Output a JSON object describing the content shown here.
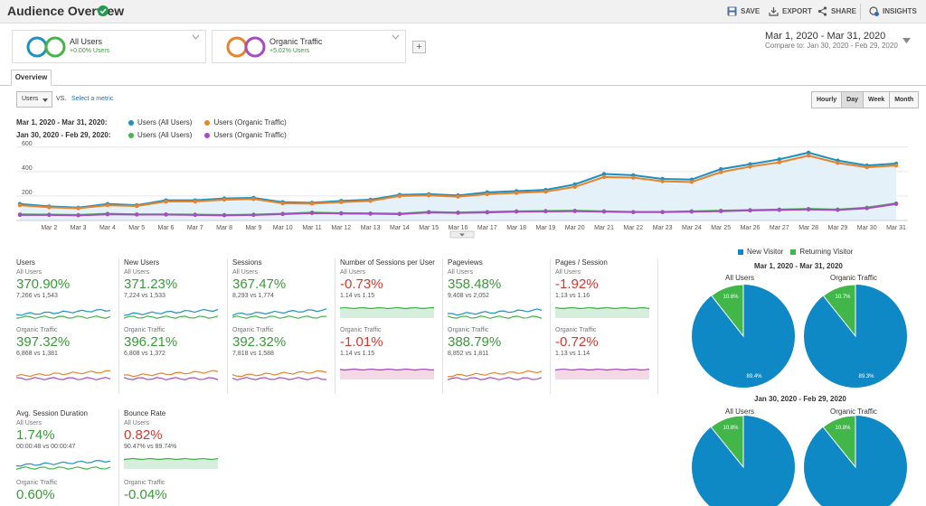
{
  "header": {
    "title": "Audience Overview",
    "save": "SAVE",
    "export": "EXPORT",
    "share": "SHARE",
    "insights": "INSIGHTS"
  },
  "segments": [
    {
      "name": "All Users",
      "sub": "+0.00% Users",
      "color1": "#1c91c0",
      "color2": "#43b649"
    },
    {
      "name": "Organic Traffic",
      "sub": "+5.02% Users",
      "color1": "#e8832a",
      "color2": "#a74bc4"
    }
  ],
  "daterange": {
    "range": "Mar 1, 2020 - Mar 31, 2020",
    "compare": "Compare to: Jan 30, 2020 - Feb 29, 2020"
  },
  "tab": "Overview",
  "metric_select": "Users",
  "vs_text": "VS.",
  "select_metric": "Select a metric",
  "granularity": {
    "options": [
      "Hourly",
      "Day",
      "Week",
      "Month"
    ],
    "selected": "Day"
  },
  "legend": {
    "row1_label": "Mar 1, 2020 - Mar 31, 2020:",
    "row2_label": "Jan 30, 2020 - Feb 29, 2020:",
    "row1": [
      "Users (All Users)",
      "Users (Organic Traffic)"
    ],
    "row2": [
      "Users (All Users)",
      "Users (Organic Traffic)"
    ]
  },
  "chart_data": {
    "type": "line",
    "x": [
      "",
      "Mar 2",
      "Mar 3",
      "Mar 4",
      "Mar 5",
      "Mar 6",
      "Mar 7",
      "Mar 8",
      "Mar 9",
      "Mar 10",
      "Mar 11",
      "Mar 12",
      "Mar 13",
      "Mar 14",
      "Mar 15",
      "Mar 16",
      "Mar 17",
      "Mar 18",
      "Mar 19",
      "Mar 20",
      "Mar 21",
      "Mar 22",
      "Mar 23",
      "Mar 24",
      "Mar 25",
      "Mar 26",
      "Mar 27",
      "Mar 28",
      "Mar 29",
      "Mar 30",
      "Mar 31"
    ],
    "yticks": [
      200,
      400,
      600
    ],
    "ylim": [
      0,
      650
    ],
    "grid": true,
    "series": [
      {
        "name": "Users (All Users)",
        "color": "#1c91c0",
        "values": [
          135,
          115,
          105,
          135,
          125,
          165,
          165,
          180,
          185,
          150,
          145,
          160,
          170,
          210,
          215,
          205,
          230,
          240,
          250,
          295,
          380,
          370,
          340,
          335,
          420,
          460,
          500,
          555,
          490,
          450,
          465
        ]
      },
      {
        "name": "Users (Organic Traffic)",
        "color": "#e8832a",
        "values": [
          125,
          108,
          100,
          125,
          118,
          155,
          155,
          170,
          175,
          140,
          138,
          150,
          160,
          200,
          205,
          195,
          215,
          225,
          235,
          275,
          355,
          350,
          320,
          315,
          395,
          440,
          475,
          530,
          470,
          435,
          450
        ]
      },
      {
        "name": "Users (All Users)",
        "color": "#43b649",
        "values": [
          50,
          48,
          45,
          55,
          50,
          50,
          48,
          45,
          48,
          55,
          65,
          60,
          58,
          55,
          70,
          65,
          70,
          75,
          78,
          80,
          75,
          70,
          70,
          75,
          80,
          85,
          90,
          95,
          90,
          105,
          140
        ]
      },
      {
        "name": "Users (Organic Traffic)",
        "color": "#a74bc4",
        "values": [
          45,
          45,
          42,
          50,
          48,
          48,
          45,
          42,
          45,
          52,
          60,
          57,
          55,
          52,
          66,
          62,
          66,
          72,
          74,
          76,
          72,
          68,
          68,
          72,
          76,
          82,
          86,
          90,
          86,
          100,
          135
        ]
      }
    ]
  },
  "metrics": [
    {
      "title": "Users",
      "all_label": "All Users",
      "all_val": "370.90%",
      "all_cls": "pos",
      "all_cmp": "7,266 vs 1,543",
      "org_label": "Organic Traffic",
      "org_val": "397.32%",
      "org_cls": "pos",
      "org_cmp": "6,868 vs 1,381"
    },
    {
      "title": "New Users",
      "all_label": "All Users",
      "all_val": "371.23%",
      "all_cls": "pos",
      "all_cmp": "7,224 vs 1,533",
      "org_label": "Organic Traffic",
      "org_val": "396.21%",
      "org_cls": "pos",
      "org_cmp": "6,808 vs 1,372"
    },
    {
      "title": "Sessions",
      "all_label": "All Users",
      "all_val": "367.47%",
      "all_cls": "pos",
      "all_cmp": "8,293 vs 1,774",
      "org_label": "Organic Traffic",
      "org_val": "392.32%",
      "org_cls": "pos",
      "org_cmp": "7,818 vs 1,588"
    },
    {
      "title": "Number of Sessions per User",
      "all_label": "All Users",
      "all_val": "-0.73%",
      "all_cls": "neg",
      "all_cmp": "1.14 vs 1.15",
      "org_label": "Organic Traffic",
      "org_val": "-1.01%",
      "org_cls": "neg",
      "org_cmp": "1.14 vs 1.15"
    },
    {
      "title": "Pageviews",
      "all_label": "All Users",
      "all_val": "358.48%",
      "all_cls": "pos",
      "all_cmp": "9,408 vs 2,052",
      "org_label": "Organic Traffic",
      "org_val": "388.79%",
      "org_cls": "pos",
      "org_cmp": "8,852 vs 1,811"
    },
    {
      "title": "Pages / Session",
      "all_label": "All Users",
      "all_val": "-1.92%",
      "all_cls": "neg",
      "all_cmp": "1.13 vs 1.16",
      "org_label": "Organic Traffic",
      "org_val": "-0.72%",
      "org_cls": "neg",
      "org_cmp": "1.13 vs 1.14"
    },
    {
      "title": "Avg. Session Duration",
      "all_label": "All Users",
      "all_val": "1.74%",
      "all_cls": "pos",
      "all_cmp": "00:00:48 vs 00:00:47",
      "org_label": "Organic Traffic",
      "org_val": "0.60%",
      "org_cls": "pos",
      "org_cmp": ""
    },
    {
      "title": "Bounce Rate",
      "all_label": "All Users",
      "all_val": "0.82%",
      "all_cls": "neg",
      "all_cmp": "90.47% vs 89.74%",
      "org_label": "Organic Traffic",
      "org_val": "-0.04%",
      "org_cls": "pos",
      "org_cmp": ""
    }
  ],
  "pies": {
    "legend": [
      "New Visitor",
      "Returning Visitor"
    ],
    "colors": [
      "#0f89c5",
      "#43b649"
    ],
    "groups": [
      {
        "title": "Mar 1, 2020 - Mar 31, 2020",
        "charts": [
          {
            "label": "All Users",
            "new": 89.4,
            "returning": 10.6,
            "new_txt": "89.4%",
            "ret_txt": "10.6%"
          },
          {
            "label": "Organic Traffic",
            "new": 89.3,
            "returning": 10.7,
            "new_txt": "89.3%",
            "ret_txt": "10.7%"
          }
        ]
      },
      {
        "title": "Jan 30, 2020 - Feb 29, 2020",
        "charts": [
          {
            "label": "All Users",
            "new": 89.2,
            "returning": 10.8,
            "new_txt": "",
            "ret_txt": "10.8%"
          },
          {
            "label": "Organic Traffic",
            "new": 89.2,
            "returning": 10.8,
            "new_txt": "",
            "ret_txt": "10.8%"
          }
        ]
      }
    ]
  }
}
